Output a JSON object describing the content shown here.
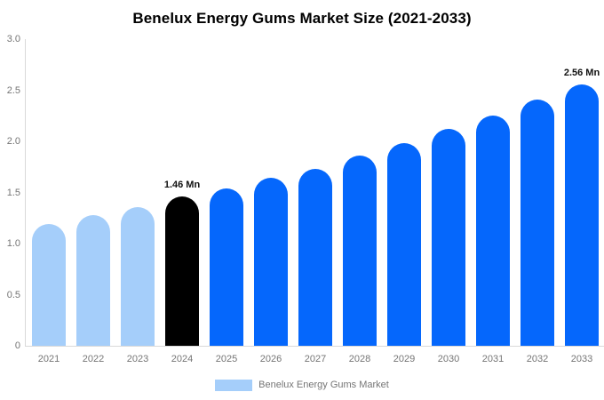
{
  "chart_data": {
    "type": "bar",
    "title": "Benelux Energy Gums Market Size (2021-2033)",
    "categories": [
      "2021",
      "2022",
      "2023",
      "2024",
      "2025",
      "2026",
      "2027",
      "2028",
      "2029",
      "2030",
      "2031",
      "2032",
      "2033"
    ],
    "values": [
      1.19,
      1.28,
      1.36,
      1.46,
      1.54,
      1.64,
      1.73,
      1.86,
      1.98,
      2.12,
      2.25,
      2.41,
      2.56
    ],
    "unit": "Mn",
    "xlabel": "",
    "ylabel": "",
    "ylim": [
      0,
      3
    ],
    "ytick_values": [
      3,
      2.5,
      2,
      1.5,
      1,
      0.5,
      0
    ],
    "ytick_labels": [
      "3.0",
      "2.5",
      "2.0",
      "1.5",
      "1.0",
      "0.5",
      "0"
    ],
    "grid": false,
    "legend_position": "bottom-center",
    "annotations": [
      {
        "category": "2024",
        "label": "1.46 Mn"
      },
      {
        "category": "2033",
        "label": "2.56 Mn"
      }
    ],
    "bar_color_keys": [
      "historical",
      "historical",
      "historical",
      "base_year",
      "forecast",
      "forecast",
      "forecast",
      "forecast",
      "forecast",
      "forecast",
      "forecast",
      "forecast",
      "forecast"
    ],
    "colors": {
      "historical": "#A5CEFA",
      "base_year": "#000000",
      "forecast": "#0567FC",
      "axis_line": "#D9D9D9",
      "tick_text": "#757575",
      "annotation_text": "#111111",
      "title_text": "#000000"
    },
    "legend": [
      {
        "label": "Benelux Energy Gums Market",
        "swatch_color": "#A5CEFA"
      }
    ]
  }
}
